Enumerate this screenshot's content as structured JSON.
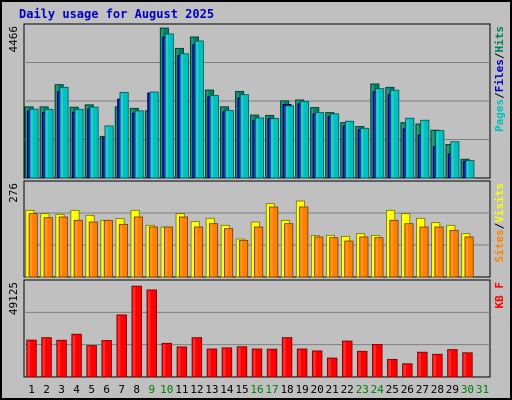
{
  "chart_data": {
    "type": "bar",
    "title": "Daily usage for August 2025",
    "days": [
      1,
      2,
      3,
      4,
      5,
      6,
      7,
      8,
      9,
      10,
      11,
      12,
      13,
      14,
      15,
      16,
      17,
      18,
      19,
      20,
      21,
      22,
      23,
      24,
      25,
      26,
      27,
      28,
      29,
      30,
      31
    ],
    "weekend_days": [
      9,
      10,
      16,
      17,
      23,
      24,
      30,
      31
    ],
    "panels": [
      {
        "id": "top",
        "ymax_label": "4466",
        "ymax": 4466,
        "right_labels": [
          {
            "text": "Pages",
            "color": "#00c0c0"
          },
          {
            "text": "/",
            "color": "#000000"
          },
          {
            "text": "Files",
            "color": "#0000c0"
          },
          {
            "text": "/",
            "color": "#000000"
          },
          {
            "text": "Hits",
            "color": "#008060"
          }
        ],
        "series": [
          {
            "key": "hits",
            "color": "#008060",
            "values": [
              2120,
              2120,
              2780,
              2110,
              2180,
              1240,
              2120,
              2075,
              2000,
              4466,
              3860,
              4200,
              2620,
              2120,
              2580,
              1875,
              1865,
              2300,
              2325,
              2100,
              1950,
              1650,
              1535,
              2800,
              2700,
              1650,
              1610,
              1425,
              1000,
              560,
              0
            ]
          },
          {
            "key": "files",
            "color": "#0000c0",
            "values": [
              2000,
              1950,
              2575,
              1960,
              2050,
              1205,
              2350,
              1930,
              2530,
              4200,
              3650,
              3970,
              2420,
              1975,
              2380,
              1720,
              1770,
              2190,
              2210,
              1905,
              1830,
              1550,
              1440,
              2570,
              2480,
              1465,
              1280,
              930,
              720,
              500,
              0
            ]
          },
          {
            "key": "pages",
            "color": "#00c0c0",
            "values": [
              2050,
              2045,
              2700,
              2045,
              2110,
              1550,
              2550,
              2000,
              2560,
              4290,
              3700,
              4080,
              2460,
              2010,
              2480,
              1790,
              1770,
              2150,
              2280,
              1950,
              1910,
              1690,
              1480,
              2660,
              2615,
              1780,
              1720,
              1410,
              1080,
              520,
              0
            ]
          }
        ]
      },
      {
        "id": "middle",
        "ymax_label": "276",
        "ymax": 276,
        "right_labels": [
          {
            "text": "Sites",
            "color": "#ff8000"
          },
          {
            "text": "/",
            "color": "#000000"
          },
          {
            "text": "Visits",
            "color": "#ffff00"
          }
        ],
        "series": [
          {
            "key": "visits",
            "color": "#ffff00",
            "values": [
              200,
              190,
              188,
              200,
              185,
              170,
              175,
              200,
              155,
              150,
              190,
              166,
              176,
              155,
              114,
              165,
              220,
              170,
              228,
              124,
              125,
              122,
              130,
              125,
              200,
              190,
              176,
              163,
              155,
              130,
              0
            ]
          },
          {
            "key": "sites",
            "color": "#ff8000",
            "values": [
              190,
              178,
              180,
              170,
              165,
              170,
              158,
              180,
              150,
              150,
              180,
              150,
              160,
              145,
              110,
              150,
              210,
              160,
              210,
              120,
              118,
              108,
              120,
              118,
              170,
              160,
              150,
              150,
              140,
              120,
              0
            ]
          }
        ]
      },
      {
        "id": "bottom",
        "ymax_label": "49125",
        "ymax": 49125,
        "right_labels": [
          {
            "text": "KB F",
            "color": "#ff0000"
          }
        ],
        "series": [
          {
            "key": "kbf",
            "color": "#ff0000",
            "values": [
              19500,
              20800,
              19400,
              22600,
              16600,
              19300,
              32800,
              48000,
              46000,
              17800,
              15900,
              20800,
              14800,
              15400,
              16000,
              14800,
              14700,
              20800,
              14800,
              13800,
              10000,
              19000,
              13600,
              17200,
              9300,
              7000,
              13100,
              12000,
              14500,
              12800,
              0
            ]
          }
        ]
      }
    ]
  }
}
